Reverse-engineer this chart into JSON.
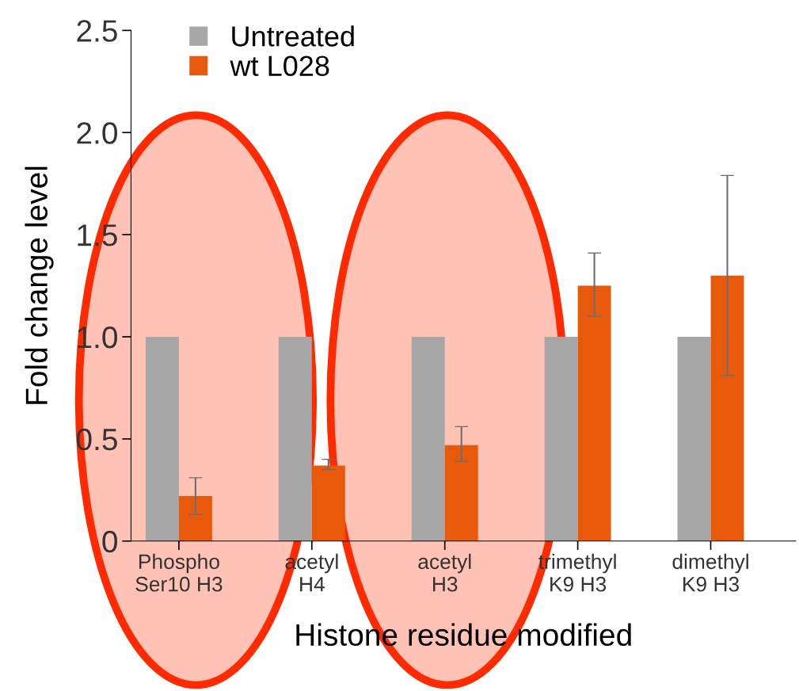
{
  "chart_data": {
    "type": "bar",
    "xlabel": "Histone residue modified",
    "ylabel": "Fold change level",
    "categories": [
      "Phospho\nSer10 H3",
      "acetyl\nH4",
      "acetyl\nH3",
      "trimethyl\nK9 H3",
      "dimethyl\nK9 H3"
    ],
    "series": [
      {
        "name": "Untreated",
        "color": "#a6a6a6",
        "values": [
          1.0,
          1.0,
          1.0,
          1.0,
          1.0
        ]
      },
      {
        "name": "wt L028",
        "color": "#e8590c",
        "values": [
          0.22,
          0.37,
          0.47,
          1.25,
          1.3
        ],
        "errors": [
          [
            0.13,
            0.31
          ],
          [
            0.35,
            0.4
          ],
          [
            0.39,
            0.56
          ],
          [
            1.1,
            1.41
          ],
          [
            0.81,
            1.79
          ]
        ]
      }
    ],
    "ylim": [
      0,
      2.5
    ],
    "yticks": [
      0,
      {
        "value": 0.5,
        "label": "0.5"
      },
      {
        "value": 1,
        "label": "1.0"
      },
      {
        "value": 1.5,
        "label": "1.5"
      },
      {
        "value": 2,
        "label": "2.0"
      },
      {
        "value": 2.5,
        "label": "2.5"
      }
    ],
    "grid": false,
    "legend": "top left"
  }
}
